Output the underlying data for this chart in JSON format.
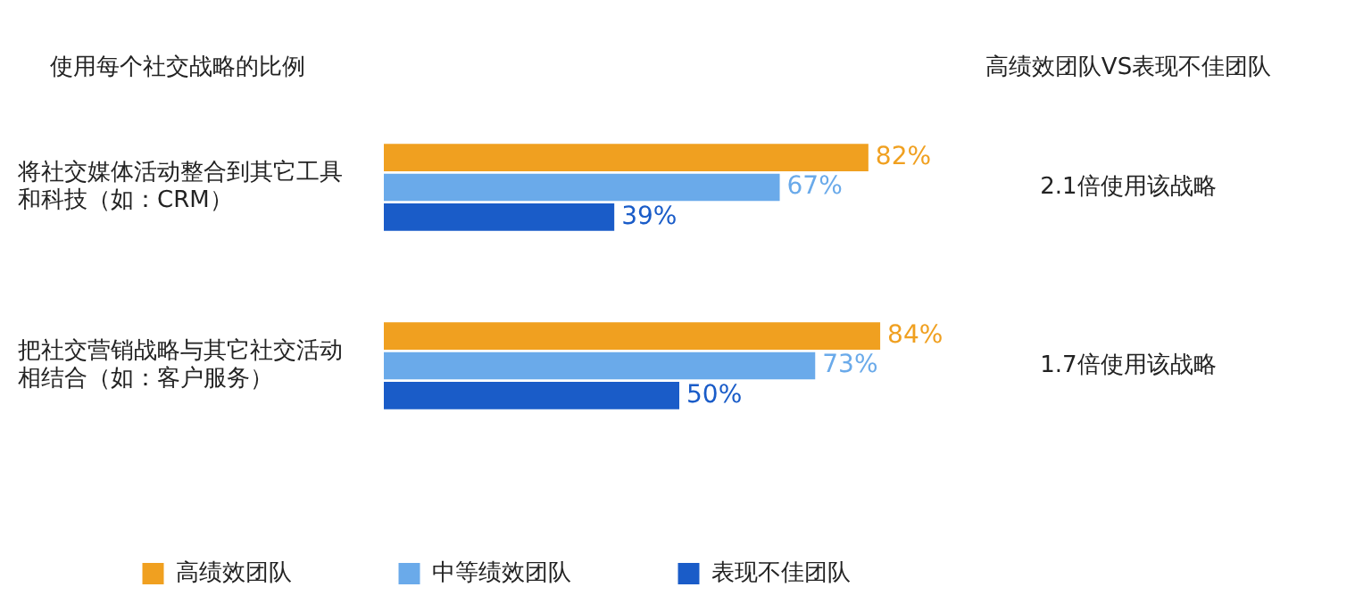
{
  "chart_data": {
    "type": "bar",
    "orientation": "horizontal",
    "title": "使用每个社交战略的比例",
    "categories": [
      "将社交媒体活动整合到其它工具和科技（如：CRM）",
      "把社交营销战略与其它社交活动相结合（如：客户服务）"
    ],
    "series": [
      {
        "name": "高绩效团队",
        "color": "#f0a020",
        "values": [
          82,
          84
        ],
        "value_labels": [
          "82%",
          "84%"
        ]
      },
      {
        "name": "中等绩效团队",
        "color": "#6aaaea",
        "values": [
          67,
          73
        ],
        "value_labels": [
          "67%",
          "73%"
        ]
      },
      {
        "name": "表现不佳团队",
        "color": "#1a5cc8",
        "values": [
          39,
          50
        ],
        "value_labels": [
          "39%",
          "50%"
        ]
      }
    ],
    "legend": "bottom",
    "annotations": [
      "高绩效团队VS表现不佳团队",
      "2.1倍使用该战略",
      "1.7倍使用该战略"
    ]
  }
}
